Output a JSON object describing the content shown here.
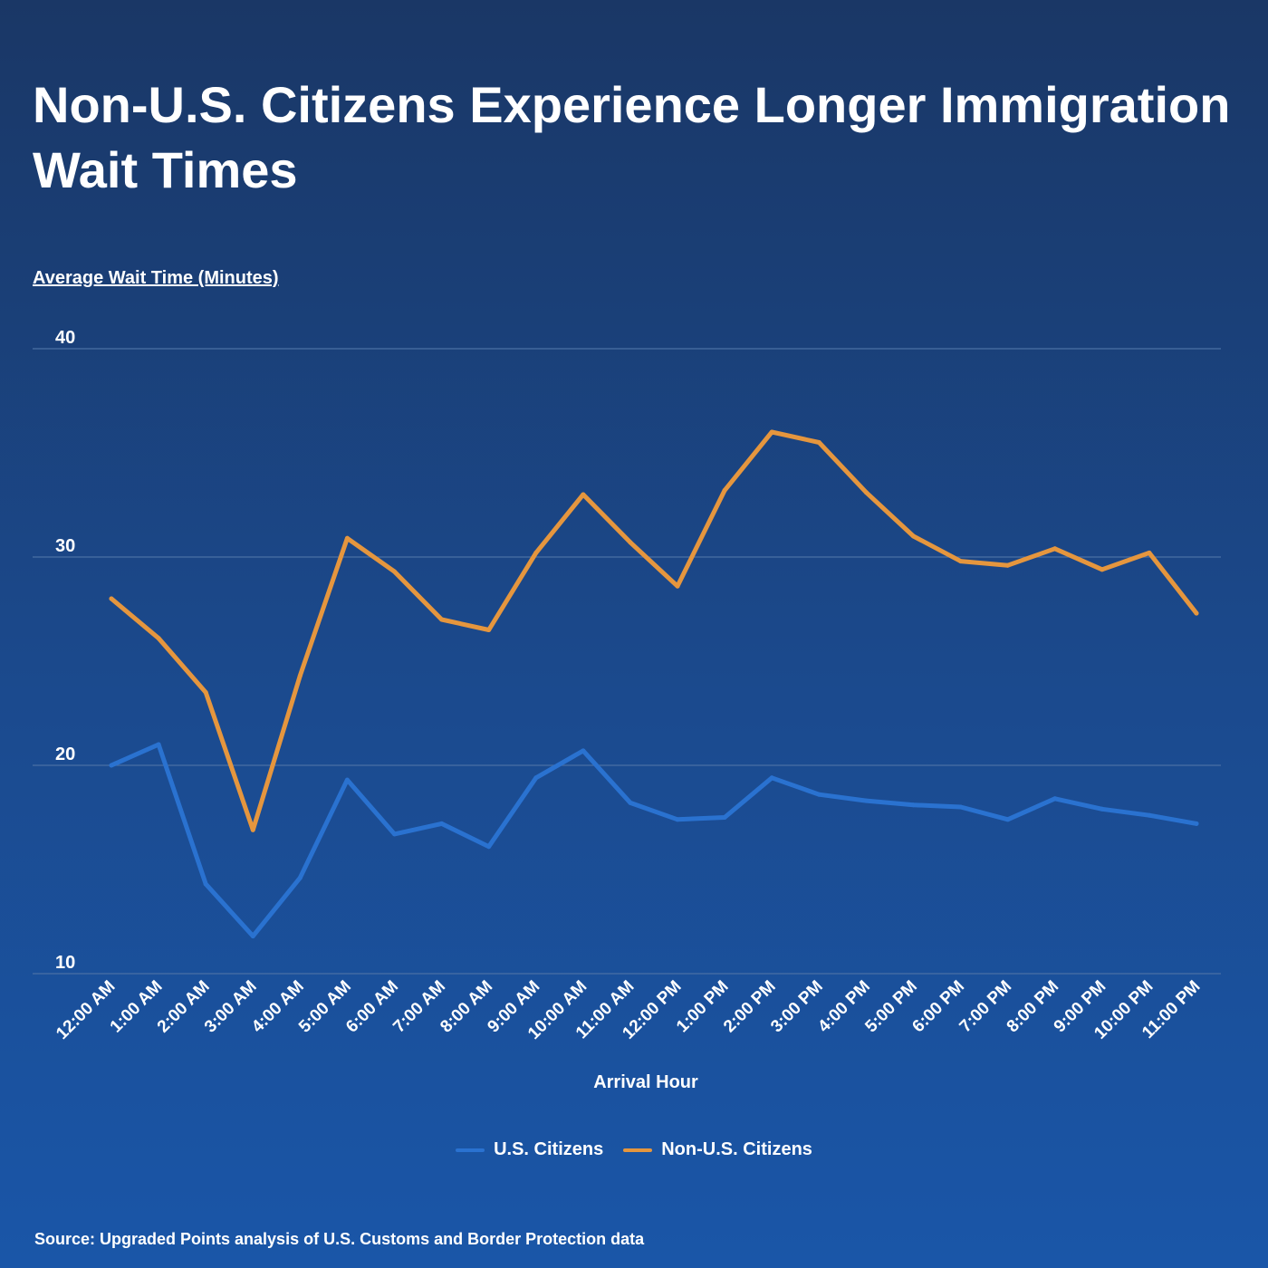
{
  "title": "Non-U.S. Citizens Experience Longer Immigration Wait Times",
  "source": "Source: Upgraded Points analysis of U.S. Customs and Border Protection data",
  "colors": {
    "us": "#2a72d0",
    "non_us": "#e5963e",
    "grid": "#4a6fa5"
  },
  "chart_data": {
    "type": "line",
    "title": "Non-U.S. Citizens Experience Longer Immigration Wait Times",
    "xlabel": "Arrival Hour",
    "ylabel": "Average Wait Time (Minutes)",
    "ylim": [
      10,
      40
    ],
    "yticks": [
      10,
      20,
      30,
      40
    ],
    "grid": "horizontal",
    "legend": "bottom-center",
    "categories": [
      "12:00 AM",
      "1:00 AM",
      "2:00 AM",
      "3:00 AM",
      "4:00 AM",
      "5:00 AM",
      "6:00 AM",
      "7:00 AM",
      "8:00 AM",
      "9:00 AM",
      "10:00 AM",
      "11:00 AM",
      "12:00 PM",
      "1:00 PM",
      "2:00 PM",
      "3:00 PM",
      "4:00 PM",
      "5:00 PM",
      "6:00 PM",
      "7:00 PM",
      "8:00 PM",
      "9:00 PM",
      "10:00 PM",
      "11:00 PM"
    ],
    "series": [
      {
        "name": "U.S. Citizens",
        "color": "#2a72d0",
        "values": [
          20.0,
          21.0,
          14.3,
          11.8,
          14.6,
          19.3,
          16.7,
          17.2,
          16.1,
          19.4,
          20.7,
          18.2,
          17.4,
          17.5,
          19.4,
          18.6,
          18.3,
          18.1,
          18.0,
          17.4,
          18.4,
          17.9,
          17.6,
          17.2
        ]
      },
      {
        "name": "Non-U.S. Citizens",
        "color": "#e5963e",
        "values": [
          28.0,
          26.1,
          23.5,
          16.9,
          24.3,
          30.9,
          29.3,
          27.0,
          26.5,
          30.2,
          33.0,
          30.7,
          28.6,
          33.2,
          36.0,
          35.5,
          33.1,
          31.0,
          29.8,
          29.6,
          30.4,
          29.4,
          30.2,
          27.3
        ]
      }
    ]
  }
}
